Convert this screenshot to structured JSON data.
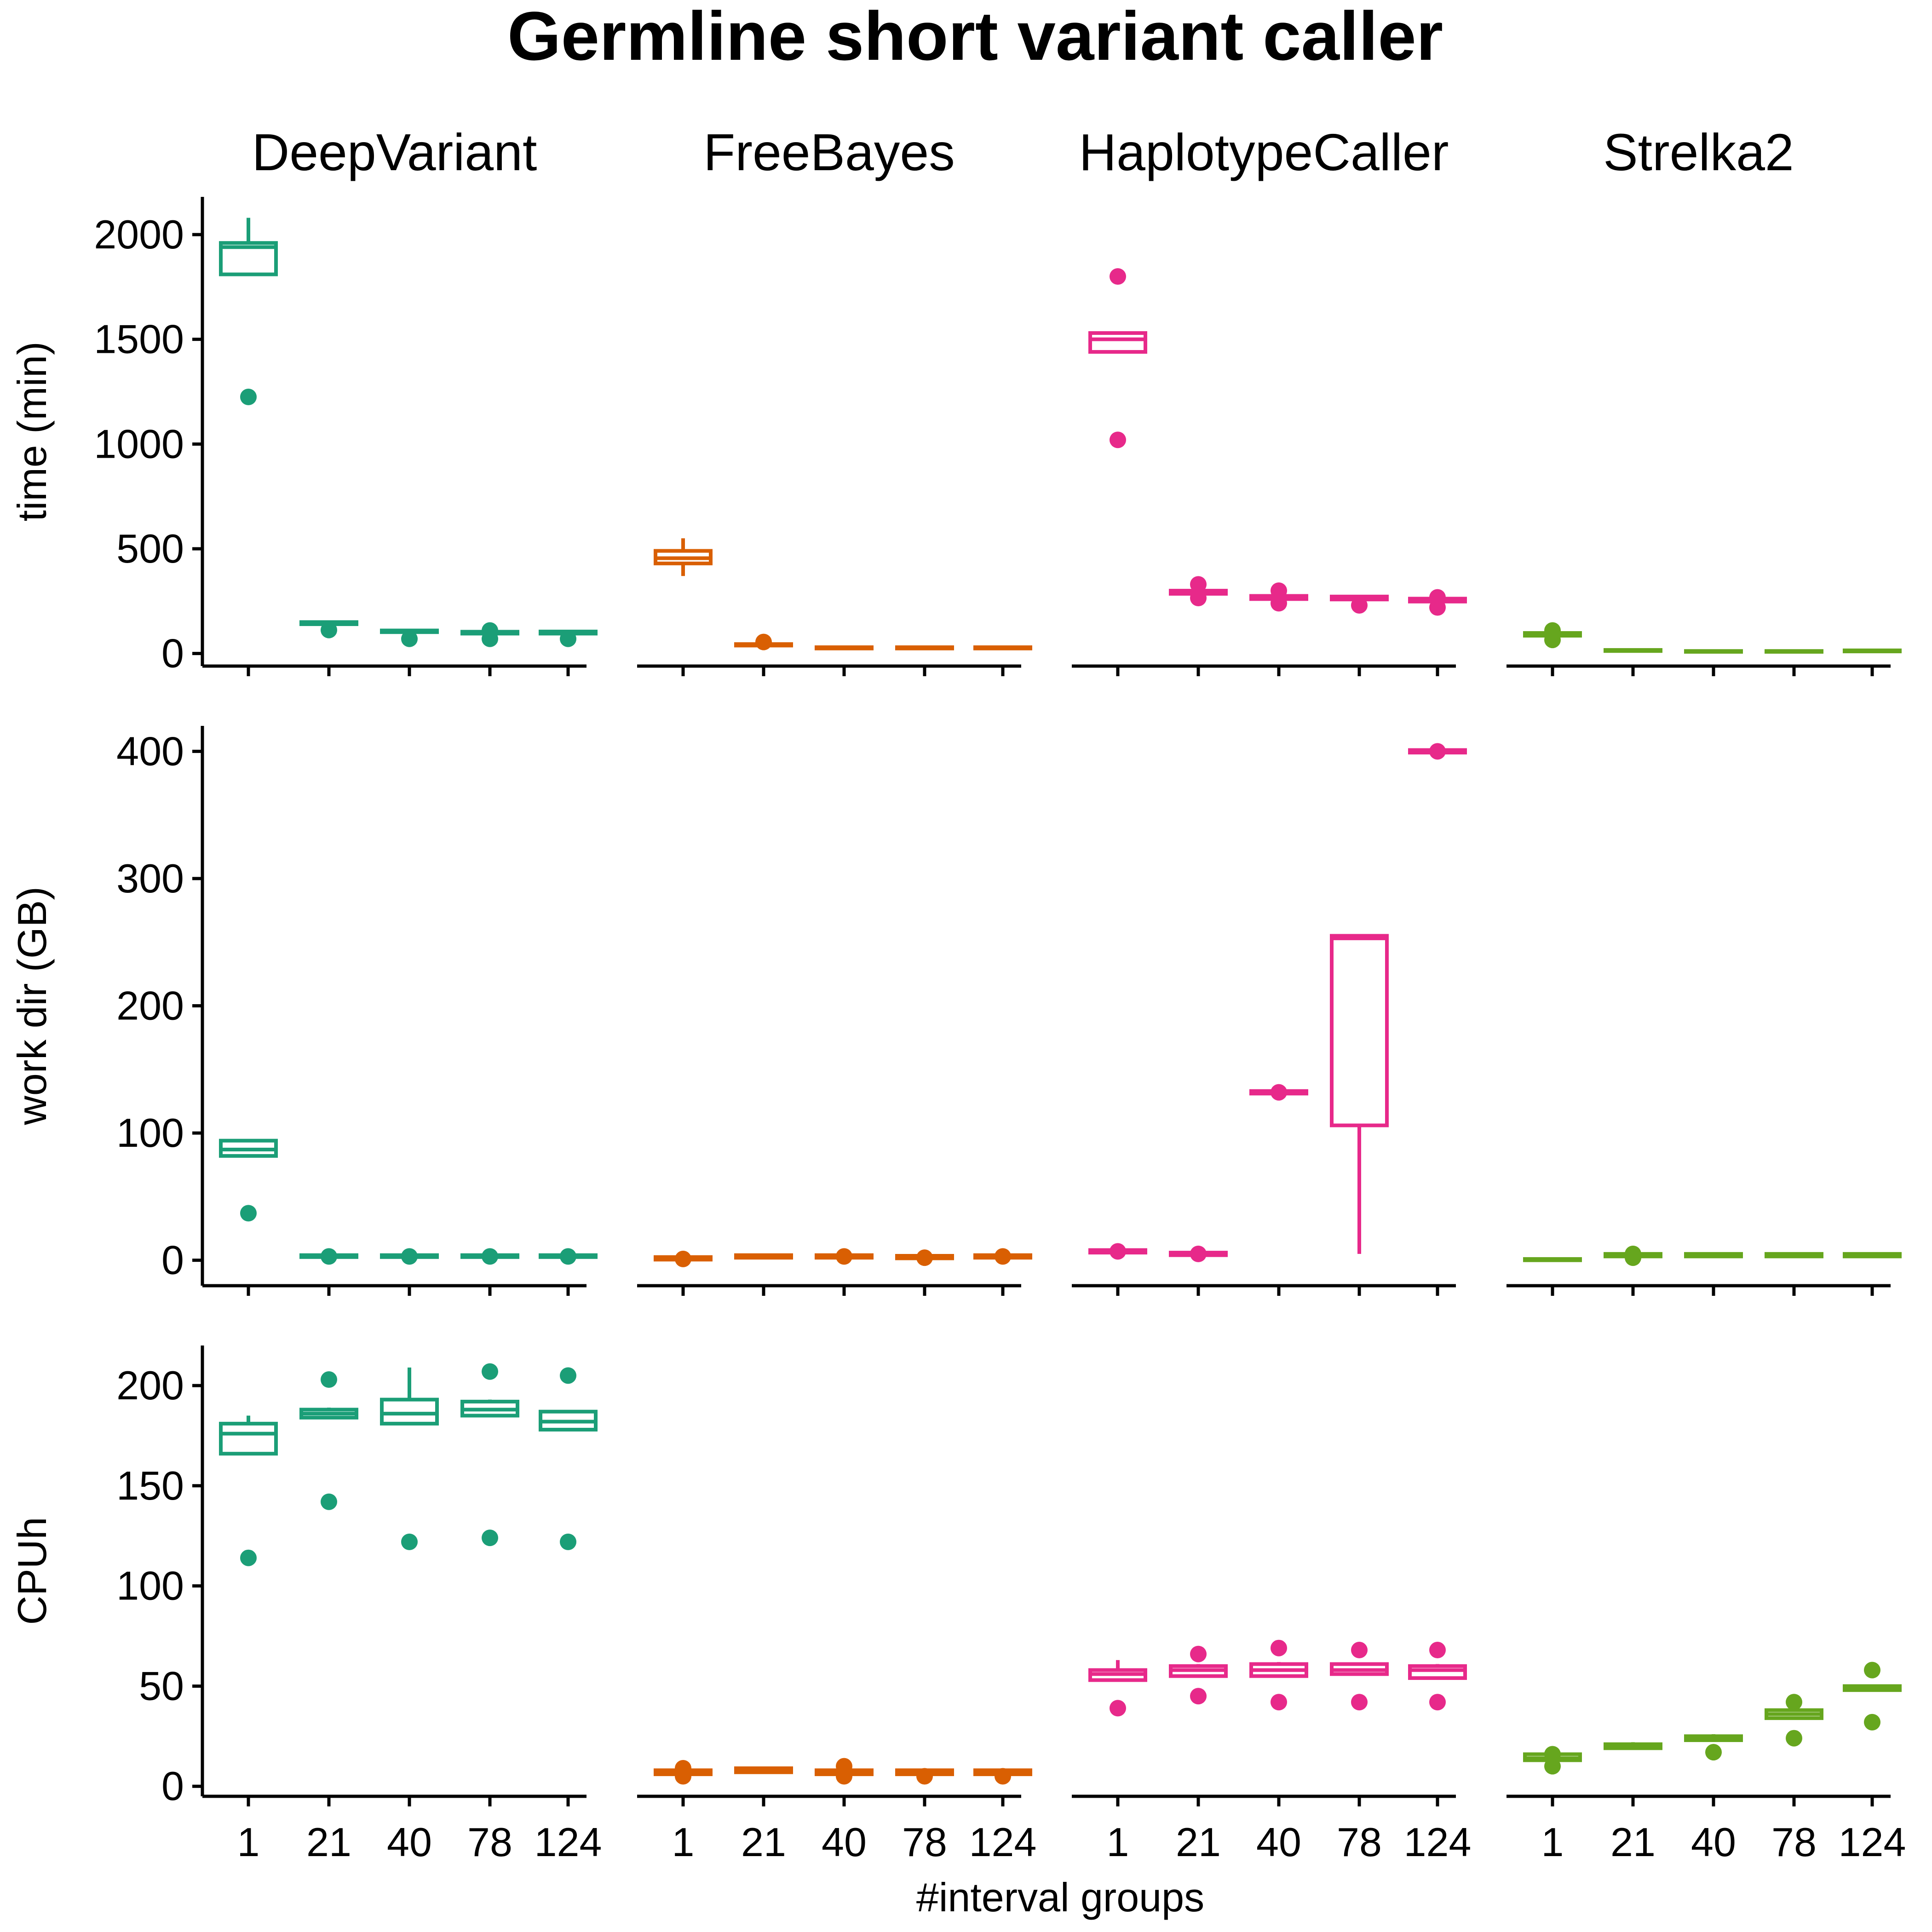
{
  "chart_data": {
    "type": "boxplot",
    "title": "Germline short variant caller",
    "xlabel": "#interval groups",
    "categories": [
      "1",
      "21",
      "40",
      "78",
      "124"
    ],
    "facets": [
      "DeepVariant",
      "FreeBayes",
      "HaplotypeCaller",
      "Strelka2"
    ],
    "colors": {
      "DeepVariant": "#1b9e77",
      "FreeBayes": "#d95f02",
      "HaplotypeCaller": "#e7298a",
      "Strelka2": "#66a61e"
    },
    "metrics": [
      {
        "ylabel": "time (min)",
        "ylim": [
          -60,
          2180
        ],
        "yticks": [
          0,
          500,
          1000,
          1500,
          2000
        ],
        "series": {
          "DeepVariant": [
            {
              "min": 1810,
              "q1": 1810,
              "median": 1940,
              "q3": 1960,
              "max": 2080,
              "outliers": [
                1225
              ]
            },
            {
              "min": 140,
              "q1": 140,
              "median": 145,
              "q3": 150,
              "max": 155,
              "outliers": [
                112
              ]
            },
            {
              "min": 102,
              "q1": 102,
              "median": 105,
              "q3": 110,
              "max": 113,
              "outliers": [
                70
              ]
            },
            {
              "min": 95,
              "q1": 95,
              "median": 100,
              "q3": 104,
              "max": 108,
              "outliers": [
                70,
                110
              ]
            },
            {
              "min": 95,
              "q1": 95,
              "median": 100,
              "q3": 105,
              "max": 108,
              "outliers": [
                70
              ]
            }
          ],
          "FreeBayes": [
            {
              "min": 370,
              "q1": 430,
              "median": 455,
              "q3": 490,
              "max": 550,
              "outliers": []
            },
            {
              "min": 38,
              "q1": 38,
              "median": 40,
              "q3": 45,
              "max": 48,
              "outliers": [
                55
              ]
            },
            {
              "min": 24,
              "q1": 24,
              "median": 26,
              "q3": 30,
              "max": 30,
              "outliers": []
            },
            {
              "min": 24,
              "q1": 24,
              "median": 26,
              "q3": 30,
              "max": 30,
              "outliers": []
            },
            {
              "min": 24,
              "q1": 24,
              "median": 26,
              "q3": 30,
              "max": 30,
              "outliers": []
            }
          ],
          "HaplotypeCaller": [
            {
              "min": 1440,
              "q1": 1440,
              "median": 1500,
              "q3": 1530,
              "max": 1530,
              "outliers": [
                1020,
                1800
              ]
            },
            {
              "min": 285,
              "q1": 285,
              "median": 292,
              "q3": 300,
              "max": 305,
              "outliers": [
                265,
                330
              ]
            },
            {
              "min": 260,
              "q1": 260,
              "median": 268,
              "q3": 275,
              "max": 280,
              "outliers": [
                240,
                300
              ]
            },
            {
              "min": 258,
              "q1": 258,
              "median": 265,
              "q3": 272,
              "max": 275,
              "outliers": [
                230
              ]
            },
            {
              "min": 248,
              "q1": 248,
              "median": 255,
              "q3": 262,
              "max": 265,
              "outliers": [
                220,
                268
              ]
            }
          ],
          "Strelka2": [
            {
              "min": 85,
              "q1": 85,
              "median": 90,
              "q3": 98,
              "max": 102,
              "outliers": [
                65,
                110
              ]
            },
            {
              "min": 12,
              "q1": 12,
              "median": 14,
              "q3": 17,
              "max": 18,
              "outliers": []
            },
            {
              "min": 8,
              "q1": 8,
              "median": 10,
              "q3": 12,
              "max": 13,
              "outliers": []
            },
            {
              "min": 8,
              "q1": 8,
              "median": 10,
              "q3": 12,
              "max": 13,
              "outliers": []
            },
            {
              "min": 10,
              "q1": 10,
              "median": 12,
              "q3": 15,
              "max": 16,
              "outliers": []
            }
          ]
        }
      },
      {
        "ylabel": "work dir (GB)",
        "ylim": [
          -20,
          420
        ],
        "yticks": [
          0,
          100,
          200,
          300,
          400
        ],
        "series": {
          "DeepVariant": [
            {
              "min": 82,
              "q1": 82,
              "median": 87,
              "q3": 94,
              "max": 94,
              "outliers": [
                37
              ]
            },
            {
              "min": 2.5,
              "q1": 2.5,
              "median": 3,
              "q3": 4,
              "max": 4.5,
              "outliers": [
                3
              ]
            },
            {
              "min": 2.5,
              "q1": 2.5,
              "median": 3,
              "q3": 4,
              "max": 4.5,
              "outliers": [
                3
              ]
            },
            {
              "min": 2.5,
              "q1": 2.5,
              "median": 3,
              "q3": 4,
              "max": 4.5,
              "outliers": [
                3
              ]
            },
            {
              "min": 2.5,
              "q1": 2.5,
              "median": 3,
              "q3": 4,
              "max": 4.5,
              "outliers": [
                3
              ]
            }
          ],
          "FreeBayes": [
            {
              "min": 0.5,
              "q1": 0.5,
              "median": 1.5,
              "q3": 2.5,
              "max": 3,
              "outliers": [
                1
              ]
            },
            {
              "min": 2,
              "q1": 2,
              "median": 3,
              "q3": 4,
              "max": 4,
              "outliers": []
            },
            {
              "min": 2,
              "q1": 2,
              "median": 3,
              "q3": 4,
              "max": 4,
              "outliers": [
                3
              ]
            },
            {
              "min": 1.5,
              "q1": 1.5,
              "median": 2.5,
              "q3": 3.5,
              "max": 4,
              "outliers": [
                2
              ]
            },
            {
              "min": 2,
              "q1": 2,
              "median": 3,
              "q3": 4,
              "max": 4,
              "outliers": [
                3
              ]
            }
          ],
          "HaplotypeCaller": [
            {
              "min": 6,
              "q1": 6,
              "median": 7,
              "q3": 8,
              "max": 8,
              "outliers": [
                7
              ]
            },
            {
              "min": 4,
              "q1": 4,
              "median": 5,
              "q3": 6,
              "max": 6,
              "outliers": [
                5
              ]
            },
            {
              "min": 131,
              "q1": 131,
              "median": 132,
              "q3": 133,
              "max": 133,
              "outliers": [
                132
              ]
            },
            {
              "min": 5,
              "q1": 106,
              "median": 253,
              "q3": 255,
              "max": 255,
              "outliers": []
            },
            {
              "min": 399,
              "q1": 399,
              "median": 400,
              "q3": 401,
              "max": 401,
              "outliers": [
                400
              ]
            }
          ],
          "Strelka2": [
            {
              "min": 0,
              "q1": 0,
              "median": 0.5,
              "q3": 1,
              "max": 1,
              "outliers": []
            },
            {
              "min": 3,
              "q1": 3,
              "median": 4,
              "q3": 5,
              "max": 5,
              "outliers": [
                2,
                5
              ]
            },
            {
              "min": 3,
              "q1": 3,
              "median": 4,
              "q3": 5,
              "max": 5,
              "outliers": []
            },
            {
              "min": 3,
              "q1": 3,
              "median": 4,
              "q3": 5,
              "max": 5,
              "outliers": []
            },
            {
              "min": 3,
              "q1": 3,
              "median": 4,
              "q3": 5,
              "max": 5,
              "outliers": []
            }
          ]
        }
      },
      {
        "ylabel": "CPUh",
        "ylim": [
          -5,
          220
        ],
        "yticks": [
          0,
          50,
          100,
          150,
          200
        ],
        "series": {
          "DeepVariant": [
            {
              "min": 166,
              "q1": 166,
              "median": 176,
              "q3": 181,
              "max": 185,
              "outliers": [
                114
              ]
            },
            {
              "min": 184,
              "q1": 184,
              "median": 186,
              "q3": 188,
              "max": 189,
              "outliers": [
                142,
                203
              ]
            },
            {
              "min": 181,
              "q1": 181,
              "median": 186,
              "q3": 193,
              "max": 209,
              "outliers": [
                122
              ]
            },
            {
              "min": 185,
              "q1": 185,
              "median": 188,
              "q3": 192,
              "max": 193,
              "outliers": [
                124,
                207
              ]
            },
            {
              "min": 178,
              "q1": 178,
              "median": 182,
              "q3": 187,
              "max": 187,
              "outliers": [
                122,
                205
              ]
            }
          ],
          "FreeBayes": [
            {
              "min": 6,
              "q1": 6,
              "median": 7,
              "q3": 8,
              "max": 9,
              "outliers": [
                5,
                9
              ]
            },
            {
              "min": 7,
              "q1": 7,
              "median": 8,
              "q3": 9,
              "max": 9,
              "outliers": []
            },
            {
              "min": 6,
              "q1": 6,
              "median": 7,
              "q3": 8,
              "max": 9,
              "outliers": [
                5,
                10
              ]
            },
            {
              "min": 6,
              "q1": 6,
              "median": 7,
              "q3": 8,
              "max": 9,
              "outliers": [
                5
              ]
            },
            {
              "min": 6,
              "q1": 6,
              "median": 7,
              "q3": 8,
              "max": 9,
              "outliers": [
                5
              ]
            }
          ],
          "HaplotypeCaller": [
            {
              "min": 53,
              "q1": 53,
              "median": 56,
              "q3": 58,
              "max": 63,
              "outliers": [
                39
              ]
            },
            {
              "min": 55,
              "q1": 55,
              "median": 58,
              "q3": 60,
              "max": 61,
              "outliers": [
                45,
                66
              ]
            },
            {
              "min": 55,
              "q1": 55,
              "median": 58,
              "q3": 61,
              "max": 62,
              "outliers": [
                42,
                69
              ]
            },
            {
              "min": 56,
              "q1": 56,
              "median": 58,
              "q3": 61,
              "max": 61,
              "outliers": [
                42,
                68
              ]
            },
            {
              "min": 54,
              "q1": 54,
              "median": 58,
              "q3": 60,
              "max": 61,
              "outliers": [
                42,
                68
              ]
            }
          ],
          "Strelka2": [
            {
              "min": 13,
              "q1": 13,
              "median": 14,
              "q3": 16,
              "max": 16,
              "outliers": [
                10,
                16
              ]
            },
            {
              "min": 19,
              "q1": 19,
              "median": 20,
              "q3": 21,
              "max": 22,
              "outliers": []
            },
            {
              "min": 23,
              "q1": 23,
              "median": 24,
              "q3": 25,
              "max": 26,
              "outliers": [
                17
              ]
            },
            {
              "min": 34,
              "q1": 34,
              "median": 36,
              "q3": 38,
              "max": 38,
              "outliers": [
                24,
                42
              ]
            },
            {
              "min": 48,
              "q1": 48,
              "median": 49,
              "q3": 50,
              "max": 50,
              "outliers": [
                32,
                58
              ]
            }
          ]
        }
      }
    ]
  }
}
